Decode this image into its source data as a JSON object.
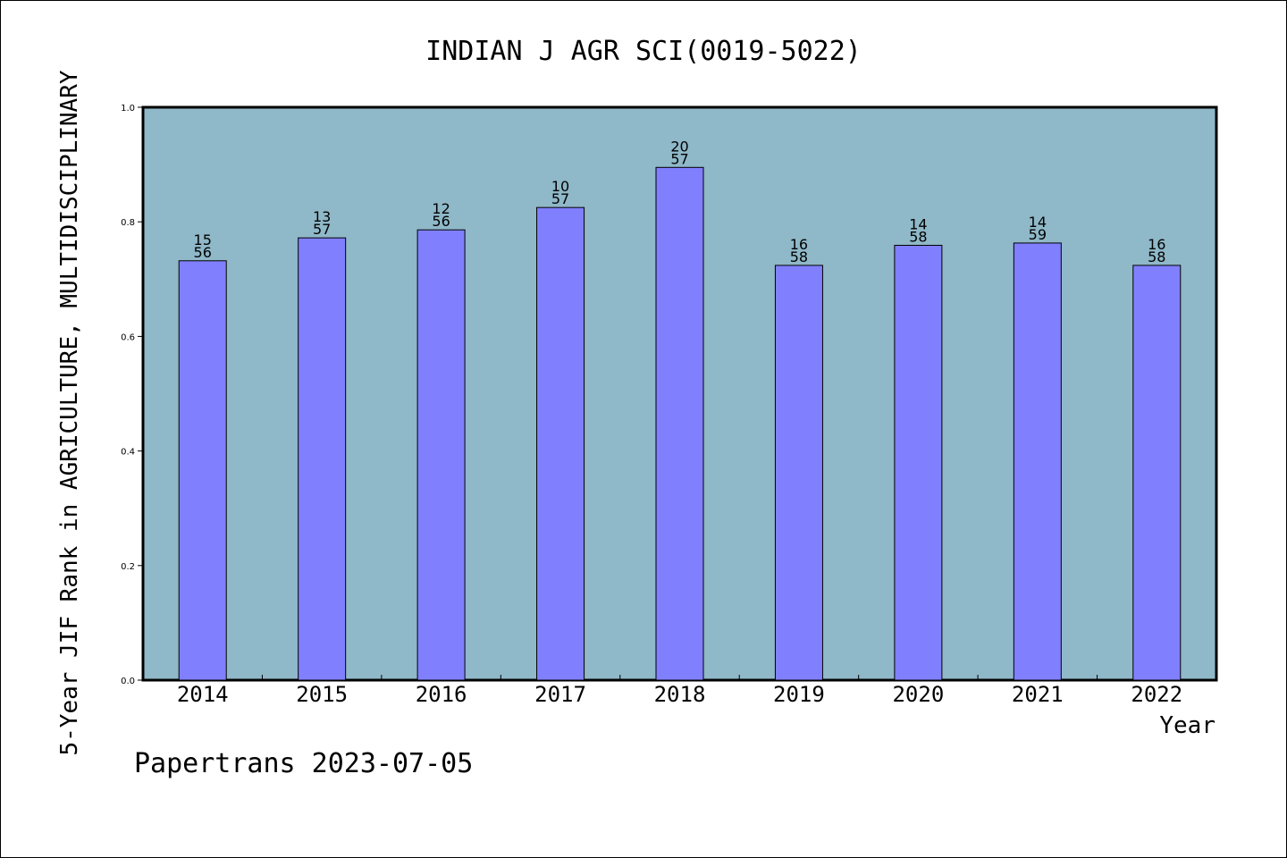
{
  "chart_data": {
    "type": "bar",
    "title": "INDIAN J AGR SCI(0019-5022)",
    "ylabel": "5-Year JIF Rank in AGRICULTURE, MULTIDISCIPLINARY",
    "xlabel": "Year",
    "categories": [
      "2014",
      "2015",
      "2016",
      "2017",
      "2018",
      "2019",
      "2020",
      "2021",
      "2022"
    ],
    "values": [
      0.732,
      0.772,
      0.786,
      0.825,
      0.895,
      0.724,
      0.759,
      0.763,
      0.724
    ],
    "rank": [
      "15",
      "13",
      "12",
      "10",
      "20",
      "16",
      "14",
      "14",
      "16"
    ],
    "total": [
      "56",
      "57",
      "56",
      "57",
      "57",
      "58",
      "58",
      "59",
      "58"
    ],
    "ylim": [
      0,
      1.0
    ],
    "yticks": [
      "0.0",
      "0.2",
      "0.4",
      "0.6",
      "0.8",
      "1.0"
    ],
    "grid": false,
    "colors": {
      "plot_bg": "#8fb8c8",
      "bar": "#8080ff"
    }
  },
  "footer": "Papertrans 2023-07-05"
}
